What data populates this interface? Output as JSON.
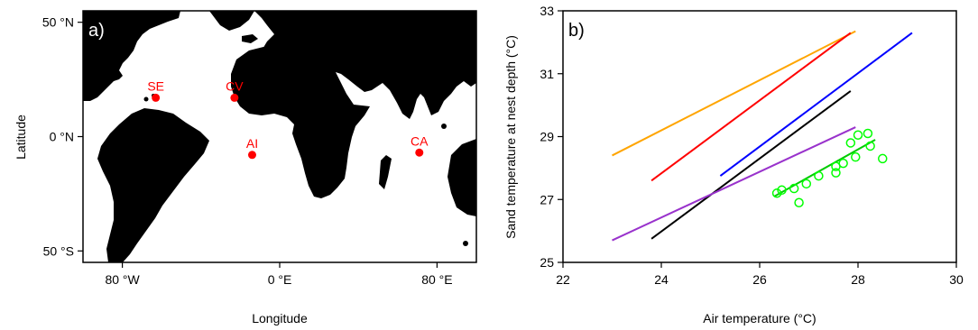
{
  "chart_data": [
    {
      "type": "map",
      "panel_label": "a)",
      "xlabel": "Longitude",
      "ylabel": "Latitude",
      "xlim": [
        -100,
        100
      ],
      "ylim": [
        -55,
        55
      ],
      "xticks": [
        {
          "value": -80,
          "label": "80 °W"
        },
        {
          "value": 0,
          "label": "0 °E"
        },
        {
          "value": 80,
          "label": "80 °E"
        }
      ],
      "yticks": [
        {
          "value": 50,
          "label": "50 °N"
        },
        {
          "value": 0,
          "label": "0 °N"
        },
        {
          "value": -50,
          "label": "50 °S"
        }
      ],
      "land_color": "#000000",
      "marker_color": "#ff0000",
      "sites": [
        {
          "label": "SE",
          "lon": -63,
          "lat": 17
        },
        {
          "label": "CV",
          "lon": -23,
          "lat": 17
        },
        {
          "label": "AI",
          "lon": -14,
          "lat": -8
        },
        {
          "label": "CA",
          "lon": 71,
          "lat": -7
        }
      ]
    },
    {
      "type": "line",
      "panel_label": "b)",
      "xlabel": "Air temperature (°C)",
      "ylabel": "Sand temperature at nest depth (°C)",
      "xlim": [
        22,
        30
      ],
      "ylim": [
        25,
        33
      ],
      "xticks": [
        22,
        24,
        26,
        28,
        30
      ],
      "yticks": [
        25,
        27,
        29,
        31,
        33
      ],
      "series": [
        {
          "color": "#ffa500",
          "x": [
            23.0,
            27.95
          ],
          "y": [
            28.4,
            32.35
          ]
        },
        {
          "color": "#ff0000",
          "x": [
            23.8,
            27.85
          ],
          "y": [
            27.6,
            32.3
          ]
        },
        {
          "color": "#0000ff",
          "x": [
            25.2,
            29.1
          ],
          "y": [
            27.75,
            32.3
          ]
        },
        {
          "color": "#000000",
          "x": [
            23.8,
            27.85
          ],
          "y": [
            25.75,
            30.45
          ]
        },
        {
          "color": "#9932cc",
          "x": [
            23.0,
            27.95
          ],
          "y": [
            25.7,
            29.3
          ]
        },
        {
          "color": "#00cc00",
          "x": [
            26.3,
            28.35
          ],
          "y": [
            27.1,
            28.9
          ]
        }
      ],
      "scatter": {
        "color": "#00ff00",
        "points": [
          [
            26.35,
            27.2
          ],
          [
            26.45,
            27.3
          ],
          [
            26.7,
            27.35
          ],
          [
            26.8,
            26.9
          ],
          [
            26.95,
            27.5
          ],
          [
            27.2,
            27.75
          ],
          [
            27.55,
            28.05
          ],
          [
            27.55,
            27.85
          ],
          [
            27.7,
            28.15
          ],
          [
            27.85,
            28.8
          ],
          [
            27.95,
            28.35
          ],
          [
            28.0,
            29.05
          ],
          [
            28.2,
            29.1
          ],
          [
            28.25,
            28.7
          ],
          [
            28.5,
            28.3
          ]
        ]
      }
    }
  ]
}
